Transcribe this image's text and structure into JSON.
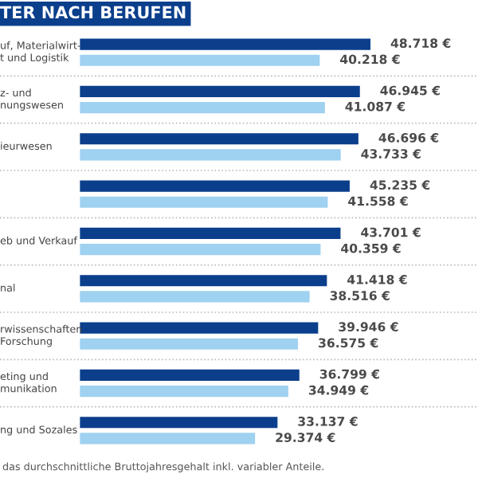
{
  "chart_data": {
    "type": "bar",
    "orientation": "horizontal",
    "title": "TER NACH BERUFEN",
    "categories": [
      "uf, Materialwirt-\nt und Logistik",
      "z- und\nnungswesen",
      "ieurwesen",
      null,
      "eb und Verkauf",
      "nal",
      "rwissenschaften\nForschung",
      "eting und\nmunikation",
      "ng und Sozales"
    ],
    "series": [
      {
        "color": "#0b3f8c",
        "values": [
          48718,
          46945,
          46696,
          45235,
          43701,
          41418,
          39946,
          36799,
          33137
        ],
        "value_labels": [
          "48.718 €",
          "46.945 €",
          "46.696 €",
          "45.235 €",
          "43.701 €",
          "41.418 €",
          "39.946 €",
          "36.799 €",
          "33.137 €"
        ]
      },
      {
        "color": "#9fd1f0",
        "values": [
          40218,
          41087,
          43733,
          41558,
          40359,
          38516,
          36575,
          34949,
          29374
        ],
        "value_labels": [
          "40.218 €",
          "41.087 €",
          "43.733 €",
          "41.558 €",
          "40.359 €",
          "38.516 €",
          "36.575 €",
          "34.949 €",
          "29.374 €"
        ]
      }
    ],
    "annotations": [
      "das durchschnittliche Bruttojahresgehalt inkl. variabler Anteile."
    ]
  }
}
